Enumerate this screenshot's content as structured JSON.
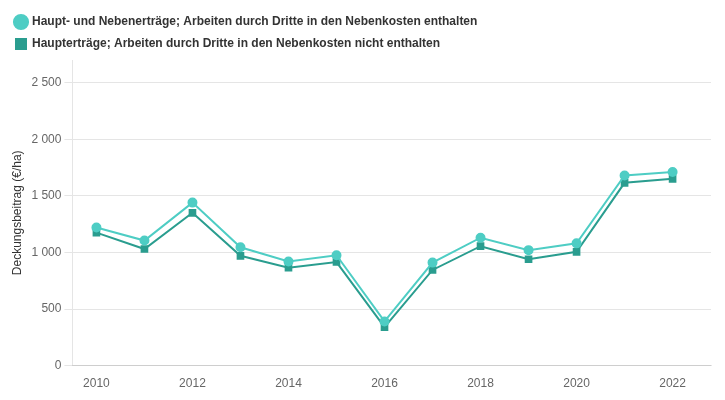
{
  "chart_data": {
    "type": "line",
    "x": [
      2010,
      2011,
      2012,
      2013,
      2014,
      2015,
      2016,
      2017,
      2018,
      2019,
      2020,
      2021,
      2022
    ],
    "series": [
      {
        "name": "Haupt- und Nebenerträge; Arbeiten durch Dritte in den Nebenkosten enthalten",
        "color": "#4ecdc4",
        "marker": "circle",
        "values": [
          1220,
          1105,
          1440,
          1045,
          920,
          975,
          390,
          910,
          1130,
          1020,
          1080,
          1680,
          1710
        ]
      },
      {
        "name": "Haupterträge; Arbeiten durch Dritte in den Nebenkosten nicht enthalten",
        "color": "#2a9d8f",
        "marker": "square",
        "values": [
          1175,
          1030,
          1350,
          970,
          865,
          915,
          340,
          845,
          1055,
          940,
          1005,
          1615,
          1650
        ]
      }
    ],
    "y_label": "Deckungsbeitrag (€/ha)",
    "xlim": [
      2009.5,
      2022.8
    ],
    "xticks": [
      2010,
      2012,
      2014,
      2016,
      2018,
      2020,
      2022
    ],
    "ylim": [
      0,
      2700
    ],
    "yticks": [
      0,
      500,
      {
        "value": 1000,
        "label": "1 000"
      },
      {
        "value": 1500,
        "label": "1 500"
      },
      {
        "value": 2000,
        "label": "2 000"
      },
      {
        "value": 2500,
        "label": "2 500"
      }
    ],
    "grid": "y",
    "legend": "top-left"
  }
}
